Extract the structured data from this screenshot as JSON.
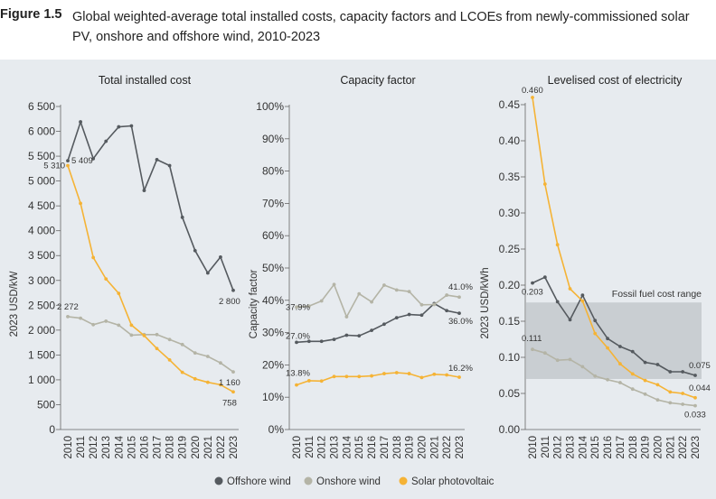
{
  "figure": {
    "number": "Figure 1.5",
    "title": "Global weighted-average total installed costs, capacity factors and LCOEs from newly-commissioned solar PV, onshore and offshore wind, 2010-2023"
  },
  "legend": [
    "Offshore wind",
    "Onshore wind",
    "Solar photovoltaic"
  ],
  "colors": {
    "offshore": "#555a5f",
    "onshore": "#b4b4a6",
    "solar": "#f5b335",
    "band": "#c9ced2",
    "background": "#e7ebef"
  },
  "chart_data": [
    {
      "type": "line",
      "title": "Total installed cost",
      "ylabel": "2023 USD/kW",
      "xlabel": "",
      "ylim": [
        0,
        6500
      ],
      "yticks": [
        "0",
        "500",
        "1 000",
        "1 500",
        "2 000",
        "2 500",
        "3 000",
        "3 500",
        "4 000",
        "4 500",
        "5 000",
        "5 500",
        "6 000",
        "6 500"
      ],
      "x": [
        "2010",
        "2011",
        "2012",
        "2013",
        "2014",
        "2015",
        "2016",
        "2017",
        "2018",
        "2019",
        "2020",
        "2021",
        "2022",
        "2023"
      ],
      "series": [
        {
          "name": "Offshore wind",
          "values": [
            5409,
            6190,
            5450,
            5800,
            6090,
            6110,
            4810,
            5430,
            5310,
            4270,
            3600,
            3150,
            3470,
            2800
          ]
        },
        {
          "name": "Onshore wind",
          "values": [
            2272,
            2240,
            2110,
            2180,
            2100,
            1900,
            1910,
            1910,
            1810,
            1710,
            1540,
            1470,
            1340,
            1160
          ]
        },
        {
          "name": "Solar photovoltaic",
          "values": [
            5310,
            4550,
            3460,
            3030,
            2740,
            2100,
            1890,
            1630,
            1400,
            1150,
            1020,
            950,
            900,
            758
          ]
        }
      ],
      "annotations": [
        "5 409",
        "5 310",
        "2 272",
        "2 800",
        "1 160",
        "758"
      ]
    },
    {
      "type": "line",
      "title": "Capacity factor",
      "ylabel": "Capacity factor",
      "xlabel": "",
      "ylim": [
        0,
        100
      ],
      "yticks": [
        "0%",
        "10%",
        "20%",
        "30%",
        "40%",
        "50%",
        "60%",
        "70%",
        "80%",
        "90%",
        "100%"
      ],
      "x": [
        "2010",
        "2011",
        "2012",
        "2013",
        "2014",
        "2015",
        "2016",
        "2017",
        "2018",
        "2019",
        "2020",
        "2021",
        "2022",
        "2023"
      ],
      "series": [
        {
          "name": "Offshore wind",
          "values": [
            27.0,
            27.3,
            27.3,
            27.9,
            29.2,
            29.0,
            30.7,
            32.6,
            34.6,
            35.6,
            35.4,
            39.0,
            36.8,
            36.0
          ]
        },
        {
          "name": "Onshore wind",
          "values": [
            37.9,
            38.2,
            39.8,
            44.9,
            34.9,
            42.0,
            39.5,
            44.7,
            43.2,
            42.7,
            38.6,
            38.7,
            41.6,
            41.0
          ]
        },
        {
          "name": "Solar photovoltaic",
          "values": [
            13.8,
            15.1,
            15.0,
            16.4,
            16.4,
            16.4,
            16.6,
            17.3,
            17.6,
            17.3,
            16.1,
            17.1,
            16.9,
            16.2
          ]
        }
      ],
      "annotations": [
        "37.9%",
        "27.0%",
        "13.8%",
        "41.0%",
        "36.0%",
        "16.2%"
      ]
    },
    {
      "type": "line",
      "title": "Levelised cost of electricity",
      "ylabel": "2023 USD/kWh",
      "xlabel": "",
      "ylim": [
        0,
        0.45
      ],
      "yticks": [
        "0.00",
        "0.05",
        "0.10",
        "0.15",
        "0.20",
        "0.25",
        "0.30",
        "0.35",
        "0.40",
        "0.45"
      ],
      "x": [
        "2010",
        "2011",
        "2012",
        "2013",
        "2014",
        "2015",
        "2016",
        "2017",
        "2018",
        "2019",
        "2020",
        "2021",
        "2022",
        "2023"
      ],
      "band": {
        "label": "Fossil fuel cost range",
        "range": [
          0.07,
          0.176
        ]
      },
      "series": [
        {
          "name": "Offshore wind",
          "values": [
            0.203,
            0.211,
            0.177,
            0.152,
            0.186,
            0.151,
            0.126,
            0.115,
            0.108,
            0.093,
            0.09,
            0.08,
            0.08,
            0.075
          ]
        },
        {
          "name": "Onshore wind",
          "values": [
            0.111,
            0.106,
            0.096,
            0.097,
            0.087,
            0.074,
            0.069,
            0.065,
            0.056,
            0.049,
            0.041,
            0.037,
            0.035,
            0.033
          ]
        },
        {
          "name": "Solar photovoltaic",
          "values": [
            0.46,
            0.34,
            0.256,
            0.195,
            0.178,
            0.133,
            0.113,
            0.091,
            0.077,
            0.068,
            0.062,
            0.052,
            0.05,
            0.044
          ]
        }
      ],
      "annotations": [
        "0.460",
        "0.203",
        "0.111",
        "0.075",
        "0.044",
        "0.033"
      ]
    }
  ]
}
